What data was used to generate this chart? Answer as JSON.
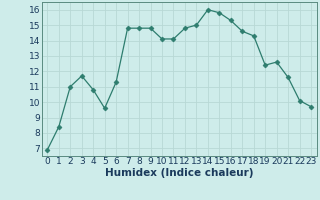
{
  "xlabel": "Humidex (Indice chaleur)",
  "x": [
    0,
    1,
    2,
    3,
    4,
    5,
    6,
    7,
    8,
    9,
    10,
    11,
    12,
    13,
    14,
    15,
    16,
    17,
    18,
    19,
    20,
    21,
    22,
    23
  ],
  "y": [
    6.9,
    8.4,
    11.0,
    11.7,
    10.8,
    9.6,
    11.3,
    14.8,
    14.8,
    14.8,
    14.1,
    14.1,
    14.8,
    15.0,
    16.0,
    15.8,
    15.3,
    14.6,
    14.3,
    12.4,
    12.6,
    11.6,
    10.1,
    9.7
  ],
  "line_color": "#2e7d6e",
  "marker": "D",
  "marker_size": 2.5,
  "bg_color": "#ceecea",
  "grid_color": "#b8d8d5",
  "ylim": [
    6.5,
    16.5
  ],
  "xlim": [
    -0.5,
    23.5
  ],
  "yticks": [
    7,
    8,
    9,
    10,
    11,
    12,
    13,
    14,
    15,
    16
  ],
  "xticks": [
    0,
    1,
    2,
    3,
    4,
    5,
    6,
    7,
    8,
    9,
    10,
    11,
    12,
    13,
    14,
    15,
    16,
    17,
    18,
    19,
    20,
    21,
    22,
    23
  ],
  "xlabel_fontsize": 7.5,
  "tick_fontsize": 6.5,
  "axis_label_color": "#1a3a5c",
  "tick_color": "#1a3a5c",
  "spine_color": "#5a8a80"
}
